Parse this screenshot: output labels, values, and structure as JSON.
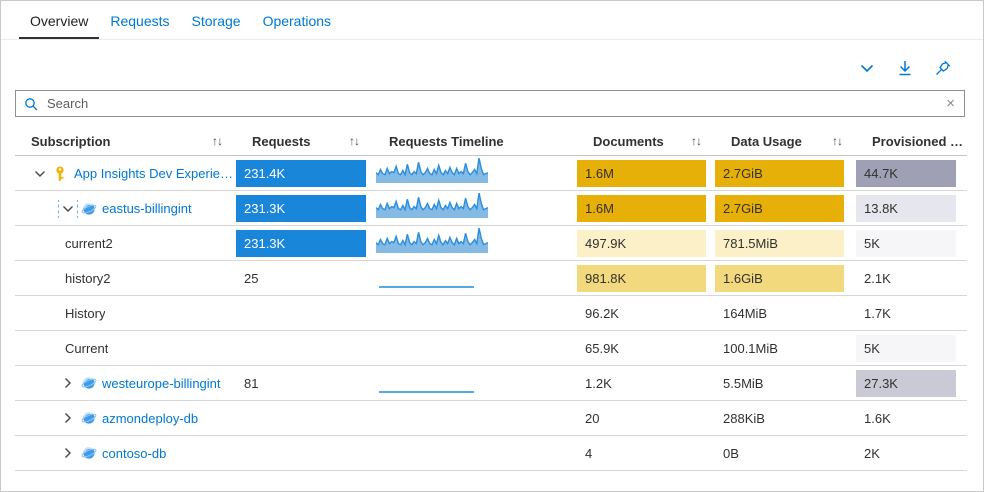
{
  "tabs": [
    {
      "label": "Overview",
      "active": true
    },
    {
      "label": "Requests",
      "active": false
    },
    {
      "label": "Storage",
      "active": false
    },
    {
      "label": "Operations",
      "active": false
    }
  ],
  "toolbar": {
    "buttons": [
      {
        "icon": "chevron-down"
      },
      {
        "icon": "download"
      },
      {
        "icon": "pin"
      }
    ]
  },
  "search": {
    "placeholder": "Search",
    "clear_glyph": "×"
  },
  "table": {
    "sort_glyph": "↑↓",
    "columns": [
      {
        "label": "Subscription",
        "sortable": true
      },
      {
        "label": "Requests",
        "sortable": true
      },
      {
        "label": "Requests Timeline",
        "sortable": false
      },
      {
        "label": "Documents",
        "sortable": true
      },
      {
        "label": "Data Usage",
        "sortable": true
      },
      {
        "label": "Provisioned thr...",
        "sortable": false
      }
    ],
    "rows": [
      {
        "name": "App Insights Dev Experience",
        "level": 0,
        "expander": "expanded",
        "focused": false,
        "icon": "key",
        "link": true,
        "requests": {
          "text": "231.4K",
          "style": "bar-blue"
        },
        "timeline": "sparkline",
        "documents": {
          "text": "1.6M",
          "style": "bar-gold"
        },
        "data_usage": {
          "text": "2.7GiB",
          "style": "bar-gold"
        },
        "provisioned": {
          "text": "44.7K",
          "style": "bar-lav-dark"
        }
      },
      {
        "name": "eastus-billingint",
        "level": 1,
        "expander": "expanded",
        "focused": true,
        "icon": "cosmos",
        "link": true,
        "requests": {
          "text": "231.3K",
          "style": "bar-blue"
        },
        "timeline": "sparkline",
        "documents": {
          "text": "1.6M",
          "style": "bar-gold"
        },
        "data_usage": {
          "text": "2.7GiB",
          "style": "bar-gold"
        },
        "provisioned": {
          "text": "13.8K",
          "style": "bar-lav-light"
        }
      },
      {
        "name": "current2",
        "level": 2,
        "expander": "none",
        "focused": false,
        "icon": "none",
        "link": false,
        "requests": {
          "text": "231.3K",
          "style": "bar-blue"
        },
        "timeline": "sparkline",
        "documents": {
          "text": "497.9K",
          "style": "bar-gold-pale"
        },
        "data_usage": {
          "text": "781.5MiB",
          "style": "bar-gold-pale"
        },
        "provisioned": {
          "text": "5K",
          "style": "bar-lav-faint"
        }
      },
      {
        "name": "history2",
        "level": 2,
        "expander": "none",
        "focused": false,
        "icon": "none",
        "link": false,
        "requests": {
          "text": "25",
          "style": "plain"
        },
        "timeline": "flatline",
        "documents": {
          "text": "981.8K",
          "style": "bar-gold-mid"
        },
        "data_usage": {
          "text": "1.6GiB",
          "style": "bar-gold-mid"
        },
        "provisioned": {
          "text": "2.1K",
          "style": "plain"
        }
      },
      {
        "name": "History",
        "level": 2,
        "expander": "none",
        "focused": false,
        "icon": "none",
        "link": false,
        "requests": {
          "text": "",
          "style": "plain"
        },
        "timeline": "none",
        "documents": {
          "text": "96.2K",
          "style": "plain"
        },
        "data_usage": {
          "text": "164MiB",
          "style": "plain"
        },
        "provisioned": {
          "text": "1.7K",
          "style": "plain"
        }
      },
      {
        "name": "Current",
        "level": 2,
        "expander": "none",
        "focused": false,
        "icon": "none",
        "link": false,
        "requests": {
          "text": "",
          "style": "plain"
        },
        "timeline": "none",
        "documents": {
          "text": "65.9K",
          "style": "plain"
        },
        "data_usage": {
          "text": "100.1MiB",
          "style": "plain"
        },
        "provisioned": {
          "text": "5K",
          "style": "bar-lav-faint"
        }
      },
      {
        "name": "westeurope-billingint",
        "level": 1,
        "expander": "collapsed",
        "focused": false,
        "icon": "cosmos",
        "link": true,
        "requests": {
          "text": "81",
          "style": "plain"
        },
        "timeline": "flatline",
        "documents": {
          "text": "1.2K",
          "style": "plain"
        },
        "data_usage": {
          "text": "5.5MiB",
          "style": "plain"
        },
        "provisioned": {
          "text": "27.3K",
          "style": "bar-lav-mid"
        }
      },
      {
        "name": "azmondeploy-db",
        "level": 1,
        "expander": "collapsed",
        "focused": false,
        "icon": "cosmos",
        "link": true,
        "requests": {
          "text": "",
          "style": "plain"
        },
        "timeline": "none",
        "documents": {
          "text": "20",
          "style": "plain"
        },
        "data_usage": {
          "text": "288KiB",
          "style": "plain"
        },
        "provisioned": {
          "text": "1.6K",
          "style": "plain"
        }
      },
      {
        "name": "contoso-db",
        "level": 1,
        "expander": "collapsed",
        "focused": false,
        "icon": "cosmos",
        "link": true,
        "requests": {
          "text": "",
          "style": "plain"
        },
        "timeline": "none",
        "documents": {
          "text": "4",
          "style": "plain"
        },
        "data_usage": {
          "text": "0B",
          "style": "plain"
        },
        "provisioned": {
          "text": "2K",
          "style": "plain"
        }
      }
    ]
  },
  "colors": {
    "accent": "#0078d4",
    "tab_active_underline": "#323130",
    "bar_blue": "#1a86d9",
    "bar_gold": "#e7b008",
    "bar_gold_mid": "#f3d97e",
    "bar_gold_pale": "#fbf0c8",
    "bar_lavender_dark": "#9fa0b4",
    "bar_lavender_mid": "#c9cad6",
    "bar_lavender_light": "#e6e6ee",
    "bar_lavender_faint": "#f6f6f9",
    "sparkline_fill": "#85bae5",
    "sparkline_stroke": "#2b8fdd",
    "key_icon": "#f0b30c"
  }
}
